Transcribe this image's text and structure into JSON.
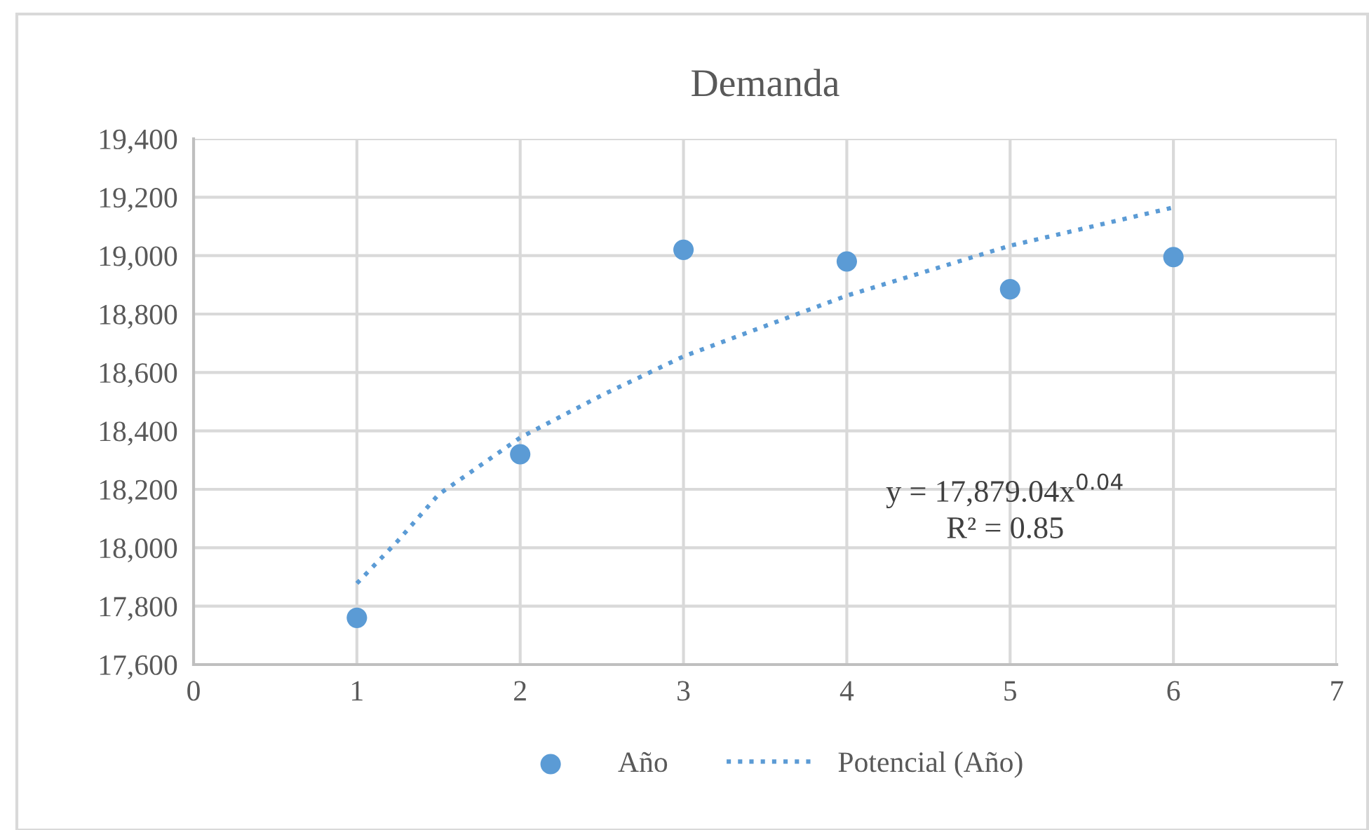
{
  "chart_data": {
    "type": "scatter",
    "title": "Demanda",
    "series": [
      {
        "name": "Año",
        "color": "#5b9bd5",
        "marker": "circle",
        "x": [
          1,
          2,
          3,
          4,
          5,
          6
        ],
        "values": [
          17760,
          18320,
          19020,
          18980,
          18885,
          18995
        ]
      },
      {
        "name": "Potencial (Año)",
        "type": "line",
        "color": "#5b9bd5",
        "line_style": "dotted",
        "marker": "none",
        "x": [
          1,
          1.25,
          1.5,
          2,
          2.5,
          3,
          4,
          5,
          6
        ],
        "values": [
          17878,
          18023,
          18182,
          18377,
          18522,
          18655,
          18863,
          19034,
          19165
        ]
      }
    ],
    "xlim": [
      0,
      7
    ],
    "xticks": [
      0,
      1,
      2,
      3,
      4,
      5,
      6,
      7
    ],
    "ylim": [
      17600,
      19400
    ],
    "yticks": [
      {
        "value": 17600,
        "label": "17,600"
      },
      {
        "value": 17800,
        "label": "17,800"
      },
      {
        "value": 18000,
        "label": "18,000"
      },
      {
        "value": 18200,
        "label": "18,200"
      },
      {
        "value": 18400,
        "label": "18,400"
      },
      {
        "value": 18600,
        "label": "18,600"
      },
      {
        "value": 18800,
        "label": "18,800"
      },
      {
        "value": 19000,
        "label": "19,000"
      },
      {
        "value": 19200,
        "label": "19,200"
      },
      {
        "value": 19400,
        "label": "19,400"
      }
    ],
    "grid": true,
    "legend": "bottom",
    "annotations": [
      "y = 17,879.04x$^{0.04}$",
      "R² = 0.85"
    ]
  }
}
